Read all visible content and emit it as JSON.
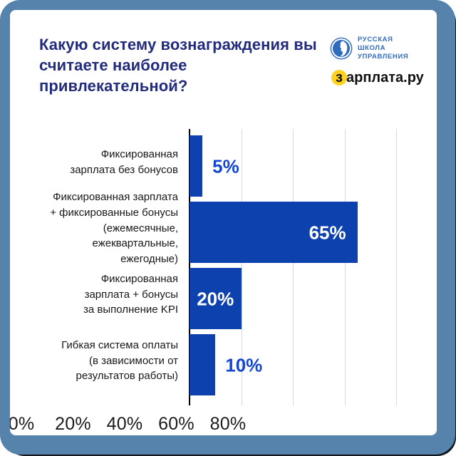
{
  "palette": {
    "frame": "#5583ab",
    "corner_shadow": "#14171c",
    "card": "#ffffff",
    "title": "#222b7c",
    "bar": "#0c41ae",
    "value_label_outside": "#1546d2",
    "value_label_inside": "#ffffff",
    "gridline": "#d9d9d9",
    "rsu_blue": "#2f6cc0",
    "zarplata_yellow": "#ffd21e"
  },
  "logos": {
    "rsu": {
      "lines": [
        "РУССКАЯ",
        "ШКОЛА",
        "УПРАВЛЕНИЯ"
      ]
    },
    "zarplata": {
      "full": "зарплата.ру",
      "first_letter": "з",
      "rest": "арплата.ру"
    }
  },
  "chart_data": {
    "type": "bar",
    "orientation": "horizontal",
    "title": "Какую систему вознаграждения вы\nсчитаете наиболее привлекательной?",
    "categories": [
      "Фиксированная\nзарплата без бонусов",
      "Фиксированная зарплата\n+ фиксированные бонусы\n(ежемесячные,\nежеквартальные,\nежегодные)",
      "Фиксированная\nзарплата + бонусы\nза выполнение KPI",
      "Гибкая система оплаты\n(в зависимости от\nрезультатов работы)"
    ],
    "values": [
      5,
      65,
      20,
      10
    ],
    "value_labels": [
      "5%",
      "65%",
      "20%",
      "10%"
    ],
    "value_label_placement": [
      "outside",
      "inside-end",
      "inside-center",
      "outside"
    ],
    "unit": "%",
    "xlim": [
      0,
      80
    ],
    "x_ticks": [
      0,
      20,
      40,
      60,
      80
    ],
    "x_tick_labels": [
      "0%",
      "20%",
      "40%",
      "60%",
      "80%"
    ],
    "grid": true,
    "legend": false
  }
}
